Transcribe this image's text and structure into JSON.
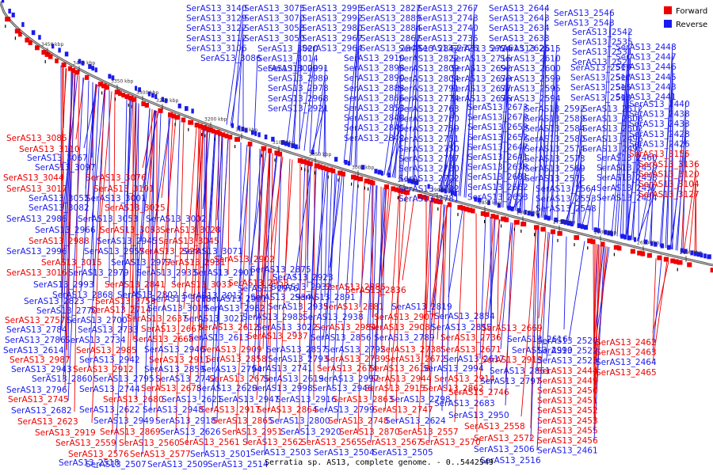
{
  "caption": "Serratia sp. AS13, complete genome. - 0..5442549",
  "legend": [
    {
      "label": "Forward",
      "color": "#ee0000"
    },
    {
      "label": "Reverse",
      "color": "#1a1aee"
    }
  ],
  "ticks": [
    "3450 kbp",
    "3400 kbp",
    "3350 kbp",
    "3300 kbp",
    "3250 kbp",
    "3200 kbp",
    "3150 kbp",
    "3100 kbp",
    "3050 kbp",
    "3000 kbp",
    "2950 kbp",
    "2900 kbp",
    "2850 kbp",
    "2800 kbp",
    "2750 kbp",
    "2700 kbp",
    "2650 kbp",
    "2600 kbp"
  ],
  "labels": [
    {
      "t": "SerAS13_3140",
      "s": "R"
    },
    {
      "t": "SerAS13_3129",
      "s": "R"
    },
    {
      "t": "SerAS13_3122",
      "s": "R"
    },
    {
      "t": "SerAS13_3112",
      "s": "R"
    },
    {
      "t": "SerAS13_3106",
      "s": "R"
    },
    {
      "t": "SerAS13_3075",
      "s": "R"
    },
    {
      "t": "SerAS13_3070",
      "s": "R"
    },
    {
      "t": "SerAS13_3058",
      "s": "R"
    },
    {
      "t": "SerAS13_3050",
      "s": "R"
    },
    {
      "t": "SerAS13_3086",
      "s": "R"
    },
    {
      "t": "SerAS13_3020",
      "s": "R"
    },
    {
      "t": "SerAS13_3014",
      "s": "R"
    },
    {
      "t": "SerAS13_3000",
      "s": "R"
    },
    {
      "t": "SerAS13_2991",
      "s": "R"
    },
    {
      "t": "SerAS13_2989",
      "s": "R"
    },
    {
      "t": "SerAS13_2978",
      "s": "R"
    },
    {
      "t": "SerAS13_2968",
      "s": "R"
    },
    {
      "t": "SerAS13_2921",
      "s": "R"
    },
    {
      "t": "SerAS13_2995",
      "s": "R"
    },
    {
      "t": "SerAS13_2992",
      "s": "R"
    },
    {
      "t": "SerAS13_2980",
      "s": "R"
    },
    {
      "t": "SerAS13_2967",
      "s": "R"
    },
    {
      "t": "SerAS13_2964",
      "s": "R"
    },
    {
      "t": "SerAS13_2910",
      "s": "R"
    },
    {
      "t": "SerAS13_2898",
      "s": "R"
    },
    {
      "t": "SerAS13_2890",
      "s": "R"
    },
    {
      "t": "SerAS13_2883",
      "s": "R"
    },
    {
      "t": "SerAS13_2866",
      "s": "R"
    },
    {
      "t": "SerAS13_2853",
      "s": "R"
    },
    {
      "t": "SerAS13_2848",
      "s": "R"
    },
    {
      "t": "SerAS13_2845",
      "s": "R"
    },
    {
      "t": "SerAS13_2842",
      "s": "R"
    },
    {
      "t": "SerAS13_2827",
      "s": "R"
    },
    {
      "t": "SerAS13_2889",
      "s": "R"
    },
    {
      "t": "SerAS13_2884",
      "s": "R"
    },
    {
      "t": "SerAS13_2867",
      "s": "R"
    },
    {
      "t": "SerAS13_2849",
      "s": "R"
    },
    {
      "t": "SerAS13_2847",
      "s": "R"
    },
    {
      "t": "SerAS13_2822",
      "s": "R"
    },
    {
      "t": "SerAS13_2809",
      "s": "R"
    },
    {
      "t": "SerAS13_2804",
      "s": "R"
    },
    {
      "t": "SerAS13_2791",
      "s": "R"
    },
    {
      "t": "SerAS13_2774",
      "s": "R"
    },
    {
      "t": "SerAS13_2763",
      "s": "R"
    },
    {
      "t": "SerAS13_2760",
      "s": "R"
    },
    {
      "t": "SerAS13_2759",
      "s": "R"
    },
    {
      "t": "SerAS13_2751",
      "s": "R"
    },
    {
      "t": "SerAS13_2750",
      "s": "R"
    },
    {
      "t": "SerAS13_2737",
      "s": "R"
    },
    {
      "t": "SerAS13_2730",
      "s": "R"
    },
    {
      "t": "SerAS13_2722",
      "s": "R"
    },
    {
      "t": "SerAS13_2782",
      "s": "R"
    },
    {
      "t": "SerAS13_2781",
      "s": "R"
    },
    {
      "t": "SerAS13_2767",
      "s": "R"
    },
    {
      "t": "SerAS13_2743",
      "s": "R"
    },
    {
      "t": "SerAS13_2740",
      "s": "R"
    },
    {
      "t": "SerAS13_2735",
      "s": "R"
    },
    {
      "t": "SerAS13_2726",
      "s": "R"
    },
    {
      "t": "SerAS13_2724",
      "s": "R"
    },
    {
      "t": "SerAS13_2715",
      "s": "R"
    },
    {
      "t": "SerAS13_2692",
      "s": "R"
    },
    {
      "t": "SerAS13_2679",
      "s": "R"
    },
    {
      "t": "SerAS13_2677",
      "s": "R"
    },
    {
      "t": "SerAS13_2676",
      "s": "R"
    },
    {
      "t": "SerAS13_2673",
      "s": "R"
    },
    {
      "t": "SerAS13_2670",
      "s": "R"
    },
    {
      "t": "SerAS13_2659",
      "s": "R"
    },
    {
      "t": "SerAS13_2652",
      "s": "R"
    },
    {
      "t": "SerAS13_2647",
      "s": "R"
    },
    {
      "t": "SerAS13_2641",
      "s": "R"
    },
    {
      "t": "SerAS13_2638",
      "s": "R"
    },
    {
      "t": "SerAS13_2681",
      "s": "R"
    },
    {
      "t": "SerAS13_2662",
      "s": "R"
    },
    {
      "t": "SerAS13_2653",
      "s": "R"
    },
    {
      "t": "SerAS13_2644",
      "s": "R"
    },
    {
      "t": "SerAS13_2643",
      "s": "R"
    },
    {
      "t": "SerAS13_2634",
      "s": "R"
    },
    {
      "t": "SerAS13_2633",
      "s": "R"
    },
    {
      "t": "SerAS13_2625",
      "s": "R"
    },
    {
      "t": "SerAS13_2615",
      "s": "R"
    },
    {
      "t": "SerAS13_2610",
      "s": "R"
    },
    {
      "t": "SerAS13_2600",
      "s": "R"
    },
    {
      "t": "SerAS13_2599",
      "s": "R"
    },
    {
      "t": "SerAS13_2595",
      "s": "R"
    },
    {
      "t": "SerAS13_2594",
      "s": "R"
    },
    {
      "t": "SerAS13_2592",
      "s": "R"
    },
    {
      "t": "SerAS13_2589",
      "s": "R"
    },
    {
      "t": "SerAS13_2584",
      "s": "R"
    },
    {
      "t": "SerAS13_2580",
      "s": "R"
    },
    {
      "t": "SerAS13_2574",
      "s": "R"
    },
    {
      "t": "SerAS13_2573",
      "s": "R"
    },
    {
      "t": "SerAS13_2569",
      "s": "R"
    },
    {
      "t": "SerAS13_2575",
      "s": "R"
    },
    {
      "t": "SerAS13_2564",
      "s": "R"
    },
    {
      "t": "SerAS13_2553",
      "s": "R"
    },
    {
      "t": "SerAS13_2548",
      "s": "R"
    },
    {
      "t": "SerAS13_2546",
      "s": "R"
    },
    {
      "t": "SerAS13_2543",
      "s": "R"
    },
    {
      "t": "SerAS13_2542",
      "s": "R"
    },
    {
      "t": "SerAS13_2535",
      "s": "R"
    },
    {
      "t": "SerAS13_2531",
      "s": "R"
    },
    {
      "t": "SerAS13_2521",
      "s": "R"
    },
    {
      "t": "SerAS13_2519",
      "s": "R"
    },
    {
      "t": "SerAS13_2517",
      "s": "R"
    },
    {
      "t": "SerAS13_2515",
      "s": "R"
    },
    {
      "t": "SerAS13_2513",
      "s": "R"
    },
    {
      "t": "SerAS13_2512",
      "s": "R"
    },
    {
      "t": "SerAS13_2508",
      "s": "R"
    },
    {
      "t": "SerAS13_2502",
      "s": "R"
    },
    {
      "t": "SerAS13_2496",
      "s": "R"
    },
    {
      "t": "SerAS13_2495",
      "s": "R"
    },
    {
      "t": "SerAS13_2460",
      "s": "R"
    },
    {
      "t": "SerAS13_2459",
      "s": "R"
    },
    {
      "t": "SerAS13_2458",
      "s": "R"
    },
    {
      "t": "SerAS13_2457",
      "s": "R"
    },
    {
      "t": "SerAS13_2454",
      "s": "R"
    },
    {
      "t": "SerAS13_2448",
      "s": "R"
    },
    {
      "t": "SerAS13_2447",
      "s": "R"
    },
    {
      "t": "SerAS13_2446",
      "s": "R"
    },
    {
      "t": "SerAS13_2445",
      "s": "R"
    },
    {
      "t": "SerAS13_2443",
      "s": "R"
    },
    {
      "t": "SerAS13_2441",
      "s": "R"
    },
    {
      "t": "SerAS13_2440",
      "s": "R"
    },
    {
      "t": "SerAS13_2438",
      "s": "R"
    },
    {
      "t": "SerAS13_2433",
      "s": "R"
    },
    {
      "t": "SerAS13_2428",
      "s": "R"
    },
    {
      "t": "SerAS13_2426",
      "s": "R"
    },
    {
      "t": "SerAS13_3155",
      "s": "F"
    },
    {
      "t": "SerAS13_3136",
      "s": "F"
    },
    {
      "t": "SerAS13_3120",
      "s": "F"
    },
    {
      "t": "SerAS13_3104",
      "s": "F"
    },
    {
      "t": "SerAS13_3127",
      "s": "F"
    },
    {
      "t": "SerAS13_3085",
      "s": "F"
    },
    {
      "t": "SerAS13_3110",
      "s": "F"
    },
    {
      "t": "SerAS13_3067",
      "s": "R"
    },
    {
      "t": "SerAS13_3097",
      "s": "R"
    },
    {
      "t": "SerAS13_3044",
      "s": "F"
    },
    {
      "t": "SerAS13_3076",
      "s": "F"
    },
    {
      "t": "SerAS13_3017",
      "s": "F"
    },
    {
      "t": "SerAS13_3101",
      "s": "F"
    },
    {
      "t": "SerAS13_3052",
      "s": "R"
    },
    {
      "t": "SerAS13_3001",
      "s": "R"
    },
    {
      "t": "SerAS13_3082",
      "s": "R"
    },
    {
      "t": "SerAS13_3025",
      "s": "F"
    },
    {
      "t": "SerAS13_2986",
      "s": "R"
    },
    {
      "t": "SerAS13_3053",
      "s": "R"
    },
    {
      "t": "SerAS13_3002",
      "s": "R"
    },
    {
      "t": "SerAS13_2966",
      "s": "R"
    },
    {
      "t": "SerAS13_3083",
      "s": "F"
    },
    {
      "t": "SerAS13_3028",
      "s": "F"
    },
    {
      "t": "SerAS13_2988",
      "s": "F"
    },
    {
      "t": "SerAS13_2945",
      "s": "R"
    },
    {
      "t": "SerAS13_3045",
      "s": "F"
    },
    {
      "t": "SerAS13_2996",
      "s": "R"
    },
    {
      "t": "SerAS13_2957",
      "s": "R"
    },
    {
      "t": "SerAS13_2928",
      "s": "F"
    },
    {
      "t": "SerAS13_3071",
      "s": "R"
    },
    {
      "t": "SerAS13_3015",
      "s": "F"
    },
    {
      "t": "SerAS13_2977",
      "s": "R"
    },
    {
      "t": "SerAS13_2931",
      "s": "F"
    },
    {
      "t": "SerAS13_2902",
      "s": "F"
    },
    {
      "t": "SerAS13_3016",
      "s": "F"
    },
    {
      "t": "SerAS13_2979",
      "s": "R"
    },
    {
      "t": "SerAS13_2933",
      "s": "R"
    },
    {
      "t": "SerAS13_2901",
      "s": "R"
    },
    {
      "t": "SerAS13_2875",
      "s": "R"
    },
    {
      "t": "SerAS13_2993",
      "s": "R"
    },
    {
      "t": "SerAS13_2841",
      "s": "F"
    },
    {
      "t": "SerAS13_3033",
      "s": "F"
    },
    {
      "t": "SerAS13_2953",
      "s": "F"
    },
    {
      "t": "SerAS13_2923",
      "s": "R"
    },
    {
      "t": "SerAS13_2868",
      "s": "R"
    },
    {
      "t": "SerAS13_2802",
      "s": "R"
    },
    {
      "t": "SerAS13_3012",
      "s": "R"
    },
    {
      "t": "SerAS13_2976",
      "s": "R"
    },
    {
      "t": "SerAS13_2932",
      "s": "R"
    },
    {
      "t": "SerAS13_2886",
      "s": "F"
    },
    {
      "t": "SerAS13_2823",
      "s": "R"
    },
    {
      "t": "SerAS13_2758",
      "s": "F"
    },
    {
      "t": "SerAS13_3018",
      "s": "R"
    },
    {
      "t": "SerAS13_2981",
      "s": "R"
    },
    {
      "t": "SerAS13_2934",
      "s": "R"
    },
    {
      "t": "SerAS13_2891",
      "s": "R"
    },
    {
      "t": "SerAS13_2836",
      "s": "F"
    },
    {
      "t": "SerAS13_2770",
      "s": "R"
    },
    {
      "t": "SerAS13_2714",
      "s": "F"
    },
    {
      "t": "SerAS13_3019",
      "s": "R"
    },
    {
      "t": "SerAS13_2982",
      "s": "R"
    },
    {
      "t": "SerAS13_2935",
      "s": "R"
    },
    {
      "t": "SerAS13_2881",
      "s": "F"
    },
    {
      "t": "SerAS13_2819",
      "s": "R"
    },
    {
      "t": "SerAS13_2757",
      "s": "F"
    },
    {
      "t": "SerAS13_2700",
      "s": "R"
    },
    {
      "t": "SerAS13_2637",
      "s": "F"
    },
    {
      "t": "SerAS13_3021",
      "s": "R"
    },
    {
      "t": "SerAS13_2983",
      "s": "R"
    },
    {
      "t": "SerAS13_2938",
      "s": "R"
    },
    {
      "t": "SerAS13_2907",
      "s": "F"
    },
    {
      "t": "SerAS13_2854",
      "s": "R"
    },
    {
      "t": "SerAS13_2784",
      "s": "R"
    },
    {
      "t": "SerAS13_2733",
      "s": "R"
    },
    {
      "t": "SerAS13_2667",
      "s": "F"
    },
    {
      "t": "SerAS13_2612",
      "s": "F"
    },
    {
      "t": "SerAS13_3022",
      "s": "R"
    },
    {
      "t": "SerAS13_2984",
      "s": "F"
    },
    {
      "t": "SerAS13_2908",
      "s": "F"
    },
    {
      "t": "SerAS13_2855",
      "s": "R"
    },
    {
      "t": "SerAS13_2786",
      "s": "R"
    },
    {
      "t": "SerAS13_2734",
      "s": "R"
    },
    {
      "t": "SerAS13_2668",
      "s": "F"
    },
    {
      "t": "SerAS13_2613",
      "s": "R"
    },
    {
      "t": "SerAS13_2937",
      "s": "F"
    },
    {
      "t": "SerAS13_2856",
      "s": "R"
    },
    {
      "t": "SerAS13_2789",
      "s": "R"
    },
    {
      "t": "SerAS13_2736",
      "s": "F"
    },
    {
      "t": "SerAS13_2669",
      "s": "F"
    },
    {
      "t": "SerAS13_2614",
      "s": "R"
    },
    {
      "t": "SerAS13_2985",
      "s": "F"
    },
    {
      "t": "SerAS13_2940",
      "s": "R"
    },
    {
      "t": "SerAS13_2909",
      "s": "F"
    },
    {
      "t": "SerAS13_2857",
      "s": "R"
    },
    {
      "t": "SerAS13_2792",
      "s": "R"
    },
    {
      "t": "SerAS13_2738",
      "s": "F"
    },
    {
      "t": "SerAS13_2671",
      "s": "F"
    },
    {
      "t": "SerAS13_2616",
      "s": "R"
    },
    {
      "t": "SerAS13_2987",
      "s": "F"
    },
    {
      "t": "SerAS13_2942",
      "s": "R"
    },
    {
      "t": "SerAS13_2911",
      "s": "F"
    },
    {
      "t": "SerAS13_2858",
      "s": "F"
    },
    {
      "t": "SerAS13_2793",
      "s": "R"
    },
    {
      "t": "SerAS13_2739",
      "s": "F"
    },
    {
      "t": "SerAS13_2672",
      "s": "F"
    },
    {
      "t": "SerAS13_2617",
      "s": "R"
    },
    {
      "t": "SerAS13_2990",
      "s": "R"
    },
    {
      "t": "SerAS13_2943",
      "s": "R"
    },
    {
      "t": "SerAS13_2912",
      "s": "F"
    },
    {
      "t": "SerAS13_2859",
      "s": "R"
    },
    {
      "t": "SerAS13_2794",
      "s": "R"
    },
    {
      "t": "SerAS13_2741",
      "s": "R"
    },
    {
      "t": "SerAS13_2674",
      "s": "F"
    },
    {
      "t": "SerAS13_2618",
      "s": "F"
    },
    {
      "t": "SerAS13_2994",
      "s": "R"
    },
    {
      "t": "SerAS13_2913",
      "s": "F"
    },
    {
      "t": "SerAS13_2860",
      "s": "R"
    },
    {
      "t": "SerAS13_2795",
      "s": "R"
    },
    {
      "t": "SerAS13_2742",
      "s": "R"
    },
    {
      "t": "SerAS13_2675",
      "s": "F"
    },
    {
      "t": "SerAS13_2619",
      "s": "R"
    },
    {
      "t": "SerAS13_2997",
      "s": "R"
    },
    {
      "t": "SerAS13_2944",
      "s": "F"
    },
    {
      "t": "SerAS13_2914",
      "s": "F"
    },
    {
      "t": "SerAS13_2861",
      "s": "R"
    },
    {
      "t": "SerAS13_2796",
      "s": "R"
    },
    {
      "t": "SerAS13_2744",
      "s": "R"
    },
    {
      "t": "SerAS13_2678",
      "s": "F"
    },
    {
      "t": "SerAS13_2620",
      "s": "R"
    },
    {
      "t": "SerAS13_2998",
      "s": "R"
    },
    {
      "t": "SerAS13_2946",
      "s": "R"
    },
    {
      "t": "SerAS13_2915",
      "s": "F"
    },
    {
      "t": "SerAS13_2862",
      "s": "F"
    },
    {
      "t": "SerAS13_2797",
      "s": "R"
    },
    {
      "t": "SerAS13_2745",
      "s": "F"
    },
    {
      "t": "SerAS13_2680",
      "s": "F"
    },
    {
      "t": "SerAS13_2621",
      "s": "R"
    },
    {
      "t": "SerAS13_2947",
      "s": "R"
    },
    {
      "t": "SerAS13_2916",
      "s": "R"
    },
    {
      "t": "SerAS13_2863",
      "s": "F"
    },
    {
      "t": "SerAS13_2798",
      "s": "R"
    },
    {
      "t": "SerAS13_2746",
      "s": "F"
    },
    {
      "t": "SerAS13_2682",
      "s": "R"
    },
    {
      "t": "SerAS13_2622",
      "s": "R"
    },
    {
      "t": "SerAS13_2948",
      "s": "R"
    },
    {
      "t": "SerAS13_2917",
      "s": "F"
    },
    {
      "t": "SerAS13_2864",
      "s": "F"
    },
    {
      "t": "SerAS13_2799",
      "s": "R"
    },
    {
      "t": "SerAS13_2747",
      "s": "F"
    },
    {
      "t": "SerAS13_2683",
      "s": "R"
    },
    {
      "t": "SerAS13_2623",
      "s": "F"
    },
    {
      "t": "SerAS13_2949",
      "s": "R"
    },
    {
      "t": "SerAS13_2918",
      "s": "R"
    },
    {
      "t": "SerAS13_2865",
      "s": "F"
    },
    {
      "t": "SerAS13_2800",
      "s": "R"
    },
    {
      "t": "SerAS13_2748",
      "s": "F"
    },
    {
      "t": "SerAS13_2624",
      "s": "R"
    },
    {
      "t": "SerAS13_2950",
      "s": "R"
    },
    {
      "t": "SerAS13_2919",
      "s": "F"
    },
    {
      "t": "SerAS13_2869",
      "s": "F"
    },
    {
      "t": "SerAS13_2626",
      "s": "R"
    },
    {
      "t": "SerAS13_2951",
      "s": "F"
    },
    {
      "t": "SerAS13_2920",
      "s": "R"
    },
    {
      "t": "SerAS13_2870",
      "s": "F"
    },
    {
      "t": "SerAS13_2557",
      "s": "F"
    },
    {
      "t": "SerAS13_2558",
      "s": "F"
    },
    {
      "t": "SerAS13_2559",
      "s": "F"
    },
    {
      "t": "SerAS13_2560",
      "s": "F"
    },
    {
      "t": "SerAS13_2561",
      "s": "F"
    },
    {
      "t": "SerAS13_2562",
      "s": "F"
    },
    {
      "t": "SerAS13_2565",
      "s": "F"
    },
    {
      "t": "SerAS13_2567",
      "s": "F"
    },
    {
      "t": "SerAS13_2570",
      "s": "F"
    },
    {
      "t": "SerAS13_2572",
      "s": "F"
    },
    {
      "t": "SerAS13_2576",
      "s": "F"
    },
    {
      "t": "SerAS13_2577",
      "s": "F"
    },
    {
      "t": "SerAS13_2501",
      "s": "R"
    },
    {
      "t": "SerAS13_2503",
      "s": "R"
    },
    {
      "t": "SerAS13_2504",
      "s": "R"
    },
    {
      "t": "SerAS13_2505",
      "s": "R"
    },
    {
      "t": "SerAS13_2506",
      "s": "R"
    },
    {
      "t": "SerAS13_2507",
      "s": "R"
    },
    {
      "t": "SerAS13_2509",
      "s": "R"
    },
    {
      "t": "SerAS13_2514",
      "s": "R"
    },
    {
      "t": "SerAS13_2516",
      "s": "R"
    },
    {
      "t": "SerAS13_2518",
      "s": "R"
    },
    {
      "t": "SerAS13_2520",
      "s": "R"
    },
    {
      "t": "SerAS13_2522",
      "s": "R"
    },
    {
      "t": "SerAS13_2523",
      "s": "R"
    },
    {
      "t": "SerAS13_2444",
      "s": "F"
    },
    {
      "t": "SerAS13_2449",
      "s": "F"
    },
    {
      "t": "SerAS13_2450",
      "s": "F"
    },
    {
      "t": "SerAS13_2451",
      "s": "F"
    },
    {
      "t": "SerAS13_2452",
      "s": "F"
    },
    {
      "t": "SerAS13_2453",
      "s": "F"
    },
    {
      "t": "SerAS13_2455",
      "s": "F"
    },
    {
      "t": "SerAS13_2456",
      "s": "F"
    },
    {
      "t": "SerAS13_2461",
      "s": "R"
    },
    {
      "t": "SerAS13_2462",
      "s": "F"
    },
    {
      "t": "SerAS13_2463",
      "s": "F"
    },
    {
      "t": "SerAS13_2464",
      "s": "R"
    },
    {
      "t": "SerAS13_2465",
      "s": "F"
    }
  ]
}
